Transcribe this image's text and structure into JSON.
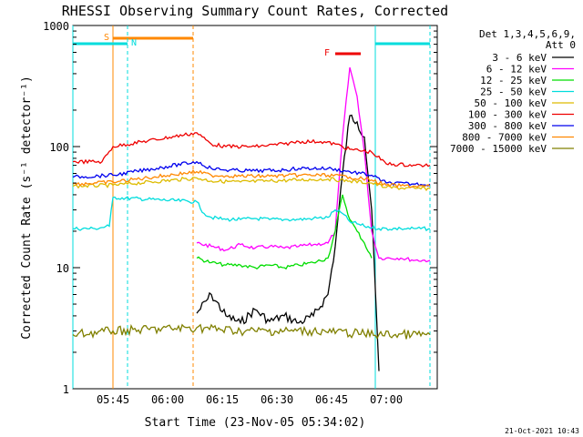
{
  "chart_data": {
    "type": "line",
    "title": "RHESSI Observing Summary Count Rates, Corrected",
    "xlabel": "Start Time (23-Nov-05 05:34:02)",
    "ylabel": "Corrected Count Rate (s⁻¹ detector⁻¹)",
    "y_scale": "log",
    "ylim": [
      1,
      1000
    ],
    "xlim": [
      "05:34",
      "07:14"
    ],
    "y_ticks": [
      "1",
      "10",
      "100",
      "1000"
    ],
    "x_ticks": [
      "05:45",
      "06:00",
      "06:15",
      "06:30",
      "06:45",
      "07:00"
    ],
    "grid": false,
    "legend_header": [
      "Det 1,3,4,5,6,9,",
      "Att 0"
    ],
    "legend_position": "right",
    "series": [
      {
        "name": "3 - 6 keV",
        "color": "#000000",
        "points": [
          [
            "06:08",
            4.2
          ],
          [
            "06:12",
            6
          ],
          [
            "06:16",
            4
          ],
          [
            "06:20",
            3.5
          ],
          [
            "06:24",
            4.5
          ],
          [
            "06:28",
            3.6
          ],
          [
            "06:32",
            4
          ],
          [
            "06:36",
            3.5
          ],
          [
            "06:40",
            4
          ],
          [
            "06:44",
            6
          ],
          [
            "06:46",
            15
          ],
          [
            "06:48",
            60
          ],
          [
            "06:50",
            180
          ],
          [
            "06:52",
            160
          ],
          [
            "06:54",
            120
          ],
          [
            "06:56",
            30
          ],
          [
            "06:58",
            1.4
          ]
        ]
      },
      {
        "name": "6 - 12 keV",
        "color": "#ff00ff",
        "points": [
          [
            "06:08",
            16
          ],
          [
            "06:12",
            15
          ],
          [
            "06:16",
            14
          ],
          [
            "06:20",
            15.5
          ],
          [
            "06:24",
            14.5
          ],
          [
            "06:28",
            15
          ],
          [
            "06:32",
            14.5
          ],
          [
            "06:36",
            15
          ],
          [
            "06:40",
            15.5
          ],
          [
            "06:44",
            16
          ],
          [
            "06:46",
            20
          ],
          [
            "06:48",
            120
          ],
          [
            "06:50",
            450
          ],
          [
            "06:52",
            260
          ],
          [
            "06:54",
            90
          ],
          [
            "06:56",
            20
          ],
          [
            "06:58",
            12
          ],
          [
            "07:00",
            12
          ],
          [
            "07:04",
            12
          ],
          [
            "07:08",
            11.5
          ],
          [
            "07:12",
            11.5
          ]
        ]
      },
      {
        "name": "12 - 25 keV",
        "color": "#00dd00",
        "points": [
          [
            "06:08",
            12
          ],
          [
            "06:12",
            11
          ],
          [
            "06:16",
            10.5
          ],
          [
            "06:20",
            10.5
          ],
          [
            "06:24",
            10
          ],
          [
            "06:28",
            10.5
          ],
          [
            "06:32",
            10
          ],
          [
            "06:36",
            10.5
          ],
          [
            "06:40",
            11
          ],
          [
            "06:44",
            12
          ],
          [
            "06:46",
            20
          ],
          [
            "06:48",
            40
          ],
          [
            "06:50",
            25
          ],
          [
            "06:52",
            20
          ],
          [
            "06:54",
            16
          ],
          [
            "06:56",
            12
          ]
        ]
      },
      {
        "name": "25 - 50 keV",
        "color": "#00dddd",
        "points": [
          [
            "05:34",
            21
          ],
          [
            "05:40",
            21
          ],
          [
            "05:44",
            22
          ],
          [
            "05:45",
            38
          ],
          [
            "06:08",
            35
          ],
          [
            "06:10",
            28
          ],
          [
            "06:12",
            26
          ],
          [
            "06:16",
            25
          ],
          [
            "06:20",
            25
          ],
          [
            "06:24",
            25.5
          ],
          [
            "06:28",
            25
          ],
          [
            "06:32",
            25
          ],
          [
            "06:36",
            25
          ],
          [
            "06:40",
            25.5
          ],
          [
            "06:44",
            26
          ],
          [
            "06:46",
            30
          ],
          [
            "06:48",
            28
          ],
          [
            "06:50",
            24
          ],
          [
            "06:54",
            22
          ],
          [
            "06:58",
            21
          ],
          [
            "07:04",
            21
          ],
          [
            "07:08",
            21
          ],
          [
            "07:12",
            21
          ]
        ]
      },
      {
        "name": "50 - 100 keV",
        "color": "#ddbb00",
        "points": [
          [
            "05:34",
            47
          ],
          [
            "05:45",
            48
          ],
          [
            "06:08",
            55
          ],
          [
            "06:12",
            52
          ],
          [
            "06:20",
            51
          ],
          [
            "06:28",
            52
          ],
          [
            "06:36",
            53
          ],
          [
            "06:44",
            54
          ],
          [
            "06:50",
            52
          ],
          [
            "06:56",
            50
          ],
          [
            "07:00",
            46
          ],
          [
            "07:08",
            45
          ],
          [
            "07:12",
            45
          ]
        ]
      },
      {
        "name": "100 - 300 keV",
        "color": "#ee0000",
        "points": [
          [
            "05:34",
            75
          ],
          [
            "05:42",
            75
          ],
          [
            "05:45",
            100
          ],
          [
            "06:08",
            130
          ],
          [
            "06:12",
            105
          ],
          [
            "06:16",
            100
          ],
          [
            "06:24",
            100
          ],
          [
            "06:32",
            105
          ],
          [
            "06:36",
            110
          ],
          [
            "06:42",
            110
          ],
          [
            "06:46",
            105
          ],
          [
            "06:50",
            95
          ],
          [
            "06:56",
            90
          ],
          [
            "07:00",
            72
          ],
          [
            "07:08",
            70
          ],
          [
            "07:12",
            70
          ]
        ]
      },
      {
        "name": "300 - 800 keV",
        "color": "#0000ee",
        "points": [
          [
            "05:34",
            56
          ],
          [
            "05:45",
            58
          ],
          [
            "06:08",
            75
          ],
          [
            "06:12",
            66
          ],
          [
            "06:16",
            64
          ],
          [
            "06:24",
            63
          ],
          [
            "06:32",
            64
          ],
          [
            "06:36",
            66
          ],
          [
            "06:44",
            66
          ],
          [
            "06:50",
            62
          ],
          [
            "06:56",
            58
          ],
          [
            "07:00",
            50
          ],
          [
            "07:08",
            49
          ],
          [
            "07:12",
            49
          ]
        ]
      },
      {
        "name": "800 - 7000 keV",
        "color": "#ff8800",
        "points": [
          [
            "05:34",
            49
          ],
          [
            "05:45",
            51
          ],
          [
            "06:08",
            62
          ],
          [
            "06:12",
            58
          ],
          [
            "06:20",
            57
          ],
          [
            "06:28",
            57
          ],
          [
            "06:36",
            58
          ],
          [
            "06:44",
            58
          ],
          [
            "06:50",
            56
          ],
          [
            "06:56",
            53
          ],
          [
            "07:00",
            48
          ],
          [
            "07:08",
            47
          ],
          [
            "07:12",
            47
          ]
        ]
      },
      {
        "name": "7000 - 15000 keV",
        "color": "#808000",
        "points": [
          [
            "05:34",
            2.8
          ],
          [
            "05:45",
            3
          ],
          [
            "06:08",
            3.2
          ],
          [
            "06:20",
            3
          ],
          [
            "06:40",
            3
          ],
          [
            "06:58",
            2.8
          ],
          [
            "07:12",
            2.8
          ]
        ]
      }
    ],
    "annotations": [
      {
        "label": "S",
        "color": "#ff8800",
        "kind": "saa",
        "start": "05:45",
        "end": "06:07"
      },
      {
        "label": "N",
        "color": "#00dddd",
        "kind": "night",
        "start": "05:34",
        "end": "05:49"
      },
      {
        "label": "",
        "color": "#00dddd",
        "kind": "night",
        "start": "06:57",
        "end": "07:12"
      },
      {
        "label": "F",
        "color": "#ee0000",
        "kind": "flare",
        "start": "06:46",
        "end": "06:53"
      }
    ],
    "footer_timestamp": "21-Oct-2021 10:43"
  }
}
